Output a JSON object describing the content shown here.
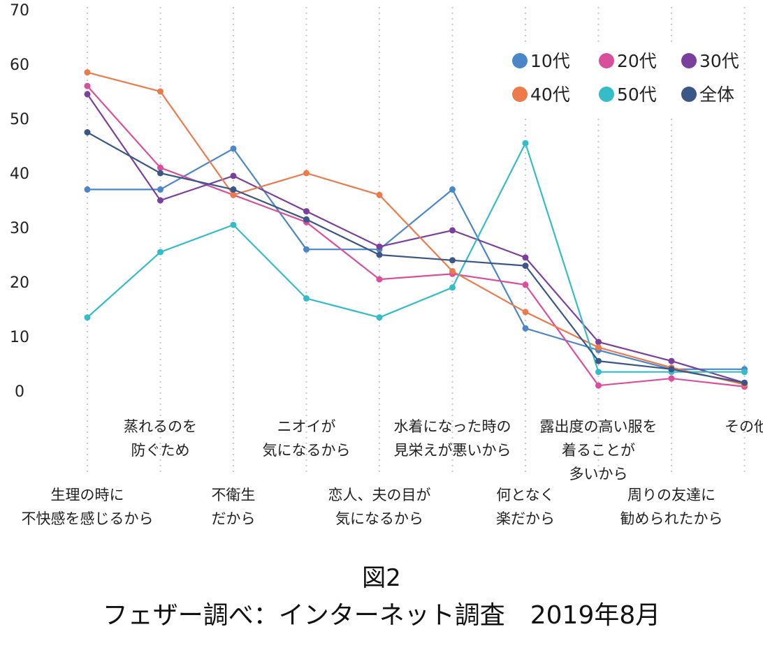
{
  "chart_data": {
    "type": "line",
    "title": "",
    "xlabel": "",
    "ylabel": "",
    "ylim": [
      0,
      70
    ],
    "yticks": [
      0,
      10,
      20,
      30,
      40,
      50,
      60,
      70
    ],
    "grid": "vertical dotted",
    "legend_position": "top-right",
    "categories": [
      "生理の時に\n不快感を感じるから",
      "蒸れるのを\n防ぐため",
      "不衛生\nだから",
      "ニオイが\n気になるから",
      "恋人、夫の目が\n気になるから",
      "水着になった時の\n見栄えが悪いから",
      "何となく\n楽だから",
      "露出度の高い服を\n着ることが\n多いから",
      "周りの友達に\n勧められたから",
      "その他"
    ],
    "series": [
      {
        "name": "10代",
        "color": "#4a86c8",
        "values": [
          37,
          37,
          44.5,
          26,
          26,
          37,
          11.5,
          7.5,
          4,
          4
        ]
      },
      {
        "name": "20代",
        "color": "#d94f9c",
        "values": [
          56,
          41,
          36,
          31,
          20.5,
          21.5,
          19.5,
          1,
          2.3,
          0.8
        ]
      },
      {
        "name": "30代",
        "color": "#7b3f9e",
        "values": [
          54.5,
          35,
          39.5,
          33,
          26.5,
          29.5,
          24.5,
          9,
          5.5,
          1.5
        ]
      },
      {
        "name": "40代",
        "color": "#ec7a4a",
        "values": [
          58.5,
          55,
          36,
          40,
          36,
          22,
          14.5,
          8,
          4.3,
          1.2
        ]
      },
      {
        "name": "50代",
        "color": "#34bcc8",
        "values": [
          13.5,
          25.5,
          30.5,
          17,
          13.5,
          19,
          45.5,
          3.5,
          3.5,
          3.5
        ]
      },
      {
        "name": "全体",
        "color": "#3b5788",
        "values": [
          47.5,
          40,
          37,
          31.5,
          25,
          24,
          23,
          5.5,
          4,
          1.5
        ]
      }
    ]
  },
  "captions": {
    "figure": "図2",
    "source": "フェザー調べ：インターネット調査　2019年8月"
  }
}
